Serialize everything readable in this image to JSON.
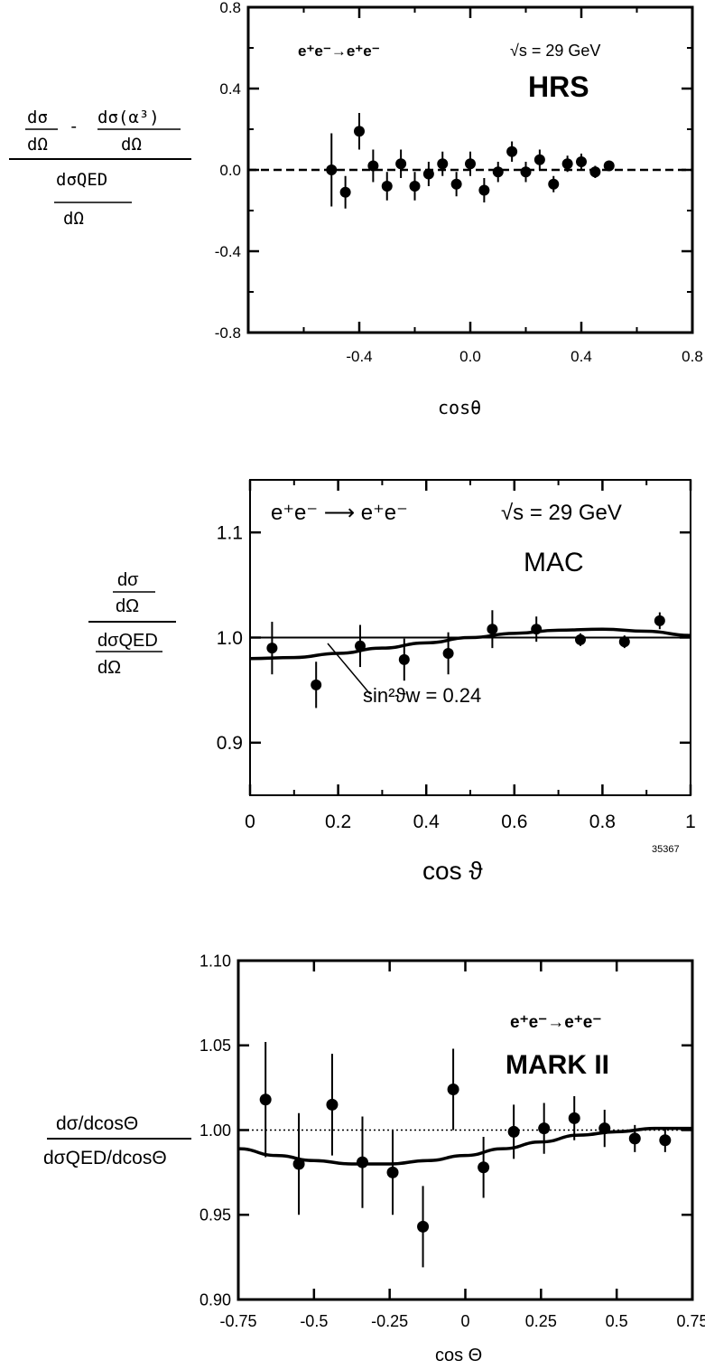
{
  "chart_data": [
    {
      "type": "scatter",
      "process_label": "e⁺e⁻→e⁺e⁻",
      "energy_label": "√s = 29 GeV",
      "experiment": "HRS",
      "xlabel": "cosθ",
      "ylabel": {
        "num_a": "dσ",
        "num_a_den": "dΩ",
        "num_minus": "-",
        "num_b": "dσ(α³)",
        "num_b_den": "dΩ",
        "den": "dσQED",
        "den_den": "dΩ"
      },
      "xlim": [
        -0.8,
        0.8
      ],
      "ylim": [
        -0.8,
        0.8
      ],
      "x_ticks": [
        -0.4,
        0.0,
        0.4,
        0.8
      ],
      "x_tick_labels": [
        "-0.4",
        "0.0",
        "0.4",
        "0.8"
      ],
      "y_ticks": [
        -0.8,
        -0.4,
        0.0,
        0.4,
        0.8
      ],
      "y_tick_labels": [
        "-0.8",
        "-0.4",
        "0.0",
        "0.4",
        "0.8"
      ],
      "reference_line": {
        "y": 0.0,
        "style": "dashed"
      },
      "points": [
        {
          "x": -0.5,
          "y": 0.0,
          "err": 0.18
        },
        {
          "x": -0.45,
          "y": -0.11,
          "err": 0.08
        },
        {
          "x": -0.4,
          "y": 0.19,
          "err": 0.09
        },
        {
          "x": -0.35,
          "y": 0.02,
          "err": 0.08
        },
        {
          "x": -0.3,
          "y": -0.08,
          "err": 0.07
        },
        {
          "x": -0.25,
          "y": 0.03,
          "err": 0.07
        },
        {
          "x": -0.2,
          "y": -0.08,
          "err": 0.07
        },
        {
          "x": -0.15,
          "y": -0.02,
          "err": 0.06
        },
        {
          "x": -0.1,
          "y": 0.03,
          "err": 0.06
        },
        {
          "x": -0.05,
          "y": -0.07,
          "err": 0.06
        },
        {
          "x": 0.0,
          "y": 0.03,
          "err": 0.06
        },
        {
          "x": 0.05,
          "y": -0.1,
          "err": 0.06
        },
        {
          "x": 0.1,
          "y": -0.01,
          "err": 0.05
        },
        {
          "x": 0.15,
          "y": 0.09,
          "err": 0.05
        },
        {
          "x": 0.2,
          "y": -0.01,
          "err": 0.05
        },
        {
          "x": 0.25,
          "y": 0.05,
          "err": 0.05
        },
        {
          "x": 0.3,
          "y": -0.07,
          "err": 0.04
        },
        {
          "x": 0.35,
          "y": 0.03,
          "err": 0.04
        },
        {
          "x": 0.4,
          "y": 0.04,
          "err": 0.04
        },
        {
          "x": 0.45,
          "y": -0.01,
          "err": 0.03
        },
        {
          "x": 0.5,
          "y": 0.02,
          "err": 0.02
        }
      ]
    },
    {
      "type": "scatter",
      "process_label": "e⁺e⁻ ⟶ e⁺e⁻",
      "energy_label": "√s = 29 GeV",
      "experiment": "MAC",
      "xlabel": "cos ϑ",
      "ylabel": {
        "num": "dσ",
        "num_den": "dΩ",
        "den": "dσQED",
        "den_den": "dΩ"
      },
      "figure_id": "35367",
      "curve_label": "sin²ϑw = 0.24",
      "xlim": [
        0,
        1
      ],
      "ylim": [
        0.85,
        1.15
      ],
      "x_ticks": [
        0,
        0.2,
        0.4,
        0.6,
        0.8,
        1
      ],
      "x_tick_labels": [
        "0",
        "0.2",
        "0.4",
        "0.6",
        "0.8",
        "1"
      ],
      "y_ticks": [
        0.9,
        1.0,
        1.1
      ],
      "y_tick_labels": [
        "0.9",
        "1.0",
        "1.1"
      ],
      "reference_line": {
        "y": 1.0,
        "style": "solid"
      },
      "curve": {
        "x": [
          0,
          0.1,
          0.2,
          0.3,
          0.4,
          0.5,
          0.6,
          0.7,
          0.8,
          0.9,
          1.0
        ],
        "y": [
          0.98,
          0.981,
          0.985,
          0.99,
          0.995,
          1.0,
          1.004,
          1.007,
          1.008,
          1.006,
          1.002
        ]
      },
      "points": [
        {
          "x": 0.05,
          "y": 0.99,
          "err": 0.025
        },
        {
          "x": 0.15,
          "y": 0.955,
          "err": 0.022
        },
        {
          "x": 0.25,
          "y": 0.992,
          "err": 0.02
        },
        {
          "x": 0.35,
          "y": 0.979,
          "err": 0.02
        },
        {
          "x": 0.45,
          "y": 0.985,
          "err": 0.02
        },
        {
          "x": 0.55,
          "y": 1.008,
          "err": 0.018
        },
        {
          "x": 0.65,
          "y": 1.008,
          "err": 0.012
        },
        {
          "x": 0.75,
          "y": 0.998,
          "err": 0.006
        },
        {
          "x": 0.85,
          "y": 0.996,
          "err": 0.006
        },
        {
          "x": 0.93,
          "y": 1.016,
          "err": 0.008
        }
      ]
    },
    {
      "type": "scatter",
      "process_label": "e⁺e⁻→e⁺e⁻",
      "experiment": "MARK II",
      "xlabel": "cos Θ",
      "ylabel": {
        "num": "dσ/dcosΘ",
        "den": "dσQED/dcosΘ"
      },
      "xlim": [
        -0.75,
        0.75
      ],
      "ylim": [
        0.9,
        1.1
      ],
      "x_ticks": [
        -0.75,
        -0.5,
        -0.25,
        0,
        0.25,
        0.5,
        0.75
      ],
      "x_tick_labels": [
        "-0.75",
        "-0.5",
        "-0.25",
        "0",
        "0.25",
        "0.5",
        "0.75"
      ],
      "y_ticks": [
        0.9,
        0.95,
        1.0,
        1.05,
        1.1
      ],
      "y_tick_labels": [
        "0.90",
        "0.95",
        "1.00",
        "1.05",
        "1.10"
      ],
      "reference_line": {
        "y": 1.0,
        "style": "dotted"
      },
      "curve": {
        "x": [
          -0.75,
          -0.625,
          -0.5,
          -0.375,
          -0.25,
          -0.125,
          0,
          0.125,
          0.25,
          0.375,
          0.5,
          0.625,
          0.75
        ],
        "y": [
          0.989,
          0.985,
          0.982,
          0.98,
          0.98,
          0.982,
          0.985,
          0.989,
          0.993,
          0.997,
          0.999,
          1.001,
          1.001
        ]
      },
      "points": [
        {
          "x": -0.66,
          "y": 1.018,
          "err": 0.034
        },
        {
          "x": -0.55,
          "y": 0.98,
          "err": 0.03
        },
        {
          "x": -0.44,
          "y": 1.015,
          "err": 0.03
        },
        {
          "x": -0.34,
          "y": 0.981,
          "err": 0.027
        },
        {
          "x": -0.24,
          "y": 0.975,
          "err": 0.025
        },
        {
          "x": -0.14,
          "y": 0.943,
          "err": 0.024
        },
        {
          "x": -0.04,
          "y": 1.024,
          "err": 0.024
        },
        {
          "x": 0.06,
          "y": 0.978,
          "err": 0.018
        },
        {
          "x": 0.16,
          "y": 0.999,
          "err": 0.016
        },
        {
          "x": 0.26,
          "y": 1.001,
          "err": 0.015
        },
        {
          "x": 0.36,
          "y": 1.007,
          "err": 0.013
        },
        {
          "x": 0.46,
          "y": 1.001,
          "err": 0.011
        },
        {
          "x": 0.56,
          "y": 0.995,
          "err": 0.008
        },
        {
          "x": 0.66,
          "y": 0.994,
          "err": 0.007
        }
      ]
    }
  ]
}
